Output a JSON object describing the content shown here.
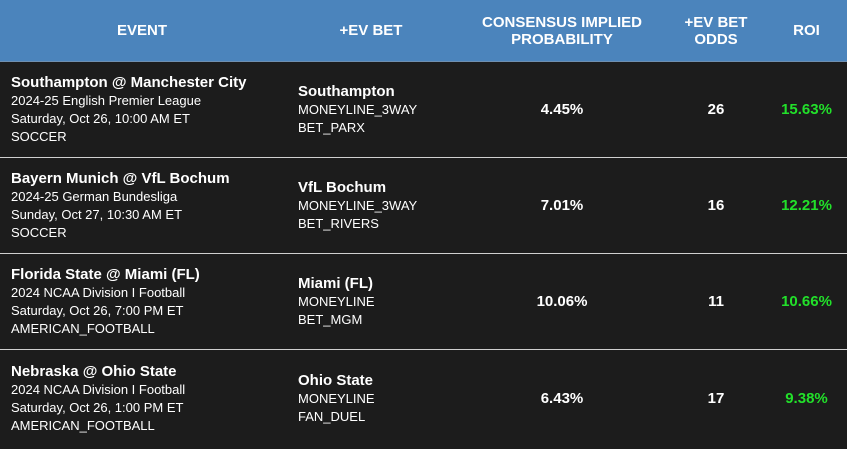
{
  "header": {
    "event": "EVENT",
    "bet": "+EV BET",
    "prob_line1": "CONSENSUS IMPLIED",
    "prob_line2": "PROBABILITY",
    "odds_line1": "+EV BET",
    "odds_line2": "ODDS",
    "roi": "ROI"
  },
  "colors": {
    "header_bg": "#4b84bc",
    "row_bg": "#1c1c1c",
    "roi_green": "#22e02a"
  },
  "rows": [
    {
      "event": "Southampton @ Manchester City",
      "league": "2024-25 English Premier League",
      "datetime": "Saturday, Oct 26, 10:00 AM ET",
      "sport": "SOCCER",
      "bet_team": "Southampton",
      "bet_market": "MONEYLINE_3WAY",
      "bet_book": "BET_PARX",
      "probability": "4.45%",
      "odds": "26",
      "roi": "15.63%"
    },
    {
      "event": "Bayern Munich @ VfL Bochum",
      "league": "2024-25 German Bundesliga",
      "datetime": "Sunday, Oct 27, 10:30 AM ET",
      "sport": "SOCCER",
      "bet_team": "VfL Bochum",
      "bet_market": "MONEYLINE_3WAY",
      "bet_book": "BET_RIVERS",
      "probability": "7.01%",
      "odds": "16",
      "roi": "12.21%"
    },
    {
      "event": "Florida State @ Miami (FL)",
      "league": "2024 NCAA Division I Football",
      "datetime": "Saturday, Oct 26, 7:00 PM ET",
      "sport": "AMERICAN_FOOTBALL",
      "bet_team": "Miami (FL)",
      "bet_market": "MONEYLINE",
      "bet_book": "BET_MGM",
      "probability": "10.06%",
      "odds": "11",
      "roi": "10.66%"
    },
    {
      "event": "Nebraska @ Ohio State",
      "league": "2024 NCAA Division I Football",
      "datetime": "Saturday, Oct 26, 1:00 PM ET",
      "sport": "AMERICAN_FOOTBALL",
      "bet_team": "Ohio State",
      "bet_market": "MONEYLINE",
      "bet_book": "FAN_DUEL",
      "probability": "6.43%",
      "odds": "17",
      "roi": "9.38%"
    }
  ]
}
